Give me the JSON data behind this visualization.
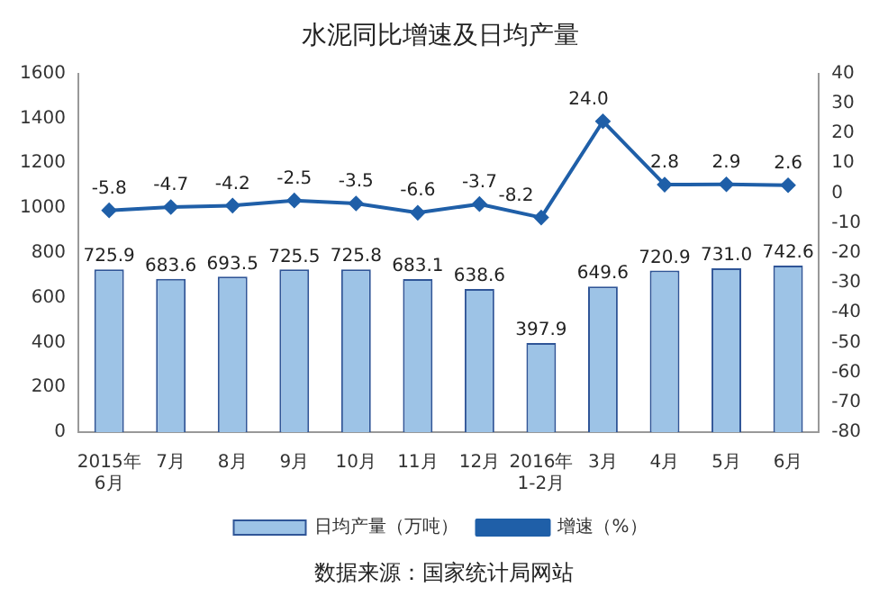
{
  "chart_data": {
    "type": "bar",
    "title": "水泥同比增速及日均产量",
    "categories": [
      "2015年\n6月",
      "7月",
      "8月",
      "9月",
      "10月",
      "11月",
      "12月",
      "2016年\n1-2月",
      "3月",
      "4月",
      "5月",
      "6月"
    ],
    "series": [
      {
        "name": "日均产量（万吨）",
        "color": "#9dc3e6",
        "values": [
          725.9,
          683.6,
          693.5,
          725.5,
          725.8,
          683.1,
          638.6,
          397.9,
          649.6,
          720.9,
          731.0,
          742.6
        ],
        "value_labels": [
          "725.9",
          "683.6",
          "693.5",
          "725.5",
          "725.8",
          "683.1",
          "638.6",
          "397.9",
          "649.6",
          "720.9",
          "731.0",
          "742.6"
        ]
      },
      {
        "name": "增速（%）",
        "type": "line",
        "axis": "y2",
        "color": "#1f5fa8",
        "values": [
          -5.8,
          -4.7,
          -4.2,
          -2.5,
          -3.5,
          -6.6,
          -3.7,
          -8.2,
          24.0,
          2.8,
          2.9,
          2.6
        ],
        "value_labels": [
          "-5.8",
          "-4.7",
          "-4.2",
          "-2.5",
          "-3.5",
          "-6.6",
          "-3.7",
          "-8.2",
          "24.0",
          "2.8",
          "2.9",
          "2.6"
        ]
      }
    ],
    "ylim": [
      0,
      1600
    ],
    "yticks": [
      0,
      200,
      400,
      600,
      800,
      1000,
      1200,
      1400,
      1600
    ],
    "y2lim": [
      -80,
      40
    ],
    "y2ticks": [
      -80,
      -70,
      -60,
      -50,
      -40,
      -30,
      -20,
      -10,
      0,
      10,
      20,
      30,
      40
    ],
    "grid": false,
    "legend": "bottom",
    "marker": "diamond",
    "annotations": [
      "数据来源：国家统计局网站"
    ]
  }
}
